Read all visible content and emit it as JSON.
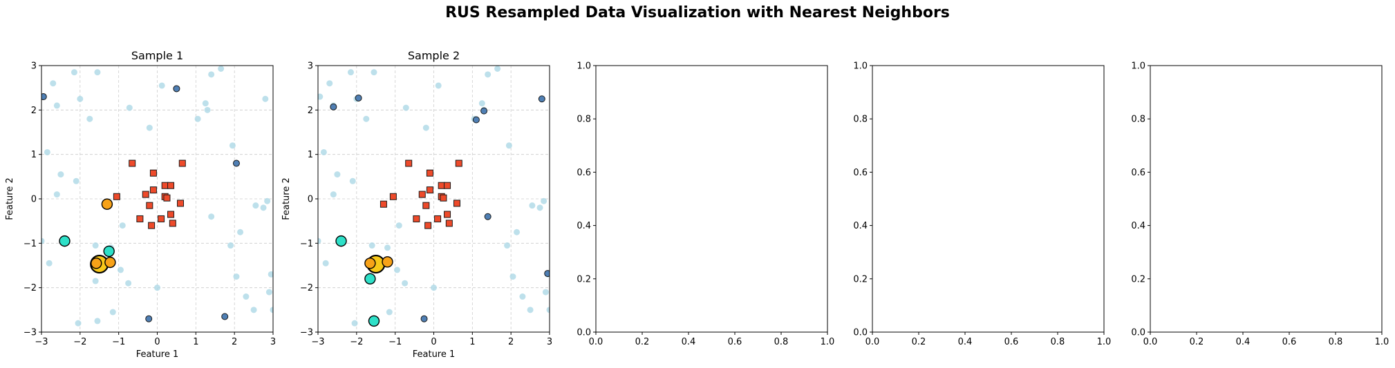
{
  "suptitle": "RUS Resampled Data Visualization with Nearest Neighbors",
  "colors": {
    "background_points": "#add8e6",
    "majority_points": "#4f7fb4",
    "minority_squares": "#ee4a2a",
    "neighbor_teal": "#2ee0c8",
    "neighbor_orange": "#f7a218",
    "query_point": "#f8c819",
    "grid": "#cccccc"
  },
  "chart_data": [
    {
      "type": "scatter",
      "title": "Sample 1",
      "xlabel": "Feature 1",
      "ylabel": "Feature 2",
      "xlim": [
        -3,
        3
      ],
      "ylim": [
        -3,
        3
      ],
      "xticks": [
        "−3",
        "−2",
        "−1",
        "0",
        "1",
        "2",
        "3"
      ],
      "yticks": [
        "−3",
        "−2",
        "−1",
        "0",
        "1",
        "2",
        "3"
      ],
      "grid": true,
      "legend": "none",
      "background": [
        [
          -2.95,
          2.3
        ],
        [
          -2.7,
          2.6
        ],
        [
          -2.15,
          2.85
        ],
        [
          -1.55,
          2.85
        ],
        [
          -2.6,
          2.1
        ],
        [
          -2.0,
          2.25
        ],
        [
          -1.75,
          1.8
        ],
        [
          -0.72,
          2.05
        ],
        [
          0.12,
          2.55
        ],
        [
          1.25,
          2.15
        ],
        [
          1.4,
          2.8
        ],
        [
          1.65,
          2.93
        ],
        [
          1.3,
          2.0
        ],
        [
          1.05,
          1.8
        ],
        [
          1.95,
          1.2
        ],
        [
          2.8,
          2.25
        ],
        [
          -0.2,
          1.6
        ],
        [
          -2.85,
          1.05
        ],
        [
          -2.5,
          0.55
        ],
        [
          -2.1,
          0.4
        ],
        [
          -2.6,
          0.1
        ],
        [
          2.55,
          -0.15
        ],
        [
          2.75,
          -0.2
        ],
        [
          2.85,
          -0.05
        ],
        [
          1.4,
          -0.4
        ],
        [
          -0.9,
          -0.6
        ],
        [
          1.9,
          -1.05
        ],
        [
          2.15,
          -0.75
        ],
        [
          -1.6,
          -1.05
        ],
        [
          -1.2,
          -1.1
        ],
        [
          -2.8,
          -1.45
        ],
        [
          -3.0,
          -0.95
        ],
        [
          -0.95,
          -1.6
        ],
        [
          -0.75,
          -1.9
        ],
        [
          -1.6,
          -1.85
        ],
        [
          0.0,
          -2.0
        ],
        [
          2.05,
          -1.75
        ],
        [
          2.95,
          -1.7
        ],
        [
          2.3,
          -2.2
        ],
        [
          2.5,
          -2.5
        ],
        [
          2.9,
          -2.1
        ],
        [
          3.0,
          -2.5
        ],
        [
          -1.55,
          -2.75
        ],
        [
          -1.15,
          -2.55
        ],
        [
          -2.05,
          -2.8
        ]
      ],
      "majority": [
        [
          -2.95,
          2.3
        ],
        [
          0.5,
          2.48
        ],
        [
          2.05,
          0.8
        ],
        [
          -0.22,
          -2.7
        ],
        [
          1.75,
          -2.65
        ]
      ],
      "minority": [
        [
          -0.65,
          0.8
        ],
        [
          0.65,
          0.8
        ],
        [
          -0.1,
          0.58
        ],
        [
          -1.05,
          0.05
        ],
        [
          -0.3,
          0.1
        ],
        [
          -0.1,
          0.2
        ],
        [
          0.2,
          0.3
        ],
        [
          0.35,
          0.3
        ],
        [
          0.2,
          0.05
        ],
        [
          0.25,
          0.02
        ],
        [
          0.6,
          -0.1
        ],
        [
          -0.2,
          -0.15
        ],
        [
          0.35,
          -0.35
        ],
        [
          -0.45,
          -0.45
        ],
        [
          0.1,
          -0.45
        ],
        [
          -0.15,
          -0.6
        ],
        [
          0.4,
          -0.55
        ]
      ],
      "neighbors_teal": [
        [
          -2.4,
          -0.95
        ],
        [
          -1.25,
          -1.18
        ]
      ],
      "neighbors_orange": [
        [
          -1.3,
          -0.12
        ],
        [
          -1.58,
          -1.45
        ],
        [
          -1.22,
          -1.43
        ]
      ],
      "query": [
        [
          -1.5,
          -1.47
        ]
      ]
    },
    {
      "type": "scatter",
      "title": "Sample 2",
      "xlabel": "Feature 1",
      "ylabel": "Feature 2",
      "xlim": [
        -3,
        3
      ],
      "ylim": [
        -3,
        3
      ],
      "xticks": [
        "−3",
        "−2",
        "−1",
        "0",
        "1",
        "2",
        "3"
      ],
      "yticks": [
        "−3",
        "−2",
        "−1",
        "0",
        "1",
        "2",
        "3"
      ],
      "grid": true,
      "legend": "none",
      "background": [
        [
          -2.95,
          2.3
        ],
        [
          -2.7,
          2.6
        ],
        [
          -2.15,
          2.85
        ],
        [
          -1.55,
          2.85
        ],
        [
          -2.6,
          2.1
        ],
        [
          -2.0,
          2.25
        ],
        [
          -1.75,
          1.8
        ],
        [
          -0.72,
          2.05
        ],
        [
          0.12,
          2.55
        ],
        [
          1.25,
          2.15
        ],
        [
          1.4,
          2.8
        ],
        [
          1.65,
          2.93
        ],
        [
          1.3,
          2.0
        ],
        [
          1.05,
          1.8
        ],
        [
          1.95,
          1.2
        ],
        [
          2.8,
          2.25
        ],
        [
          -0.2,
          1.6
        ],
        [
          -2.85,
          1.05
        ],
        [
          -2.5,
          0.55
        ],
        [
          -2.1,
          0.4
        ],
        [
          -2.6,
          0.1
        ],
        [
          2.55,
          -0.15
        ],
        [
          2.75,
          -0.2
        ],
        [
          2.85,
          -0.05
        ],
        [
          1.4,
          -0.4
        ],
        [
          -0.9,
          -0.6
        ],
        [
          1.9,
          -1.05
        ],
        [
          2.15,
          -0.75
        ],
        [
          -1.6,
          -1.05
        ],
        [
          -1.2,
          -1.1
        ],
        [
          -2.8,
          -1.45
        ],
        [
          -3.0,
          -0.95
        ],
        [
          -0.95,
          -1.6
        ],
        [
          -0.75,
          -1.9
        ],
        [
          -1.6,
          -1.85
        ],
        [
          0.0,
          -2.0
        ],
        [
          2.05,
          -1.75
        ],
        [
          2.95,
          -1.7
        ],
        [
          2.3,
          -2.2
        ],
        [
          2.5,
          -2.5
        ],
        [
          2.9,
          -2.1
        ],
        [
          3.0,
          -2.5
        ],
        [
          -1.55,
          -2.75
        ],
        [
          -1.15,
          -2.55
        ],
        [
          -2.05,
          -2.8
        ]
      ],
      "majority": [
        [
          -2.6,
          2.07
        ],
        [
          -1.95,
          2.27
        ],
        [
          1.1,
          1.78
        ],
        [
          1.3,
          1.98
        ],
        [
          2.8,
          2.25
        ],
        [
          1.4,
          -0.4
        ],
        [
          -0.25,
          -2.7
        ],
        [
          2.95,
          -1.68
        ]
      ],
      "minority": [
        [
          -0.65,
          0.8
        ],
        [
          0.65,
          0.8
        ],
        [
          -0.1,
          0.58
        ],
        [
          -1.05,
          0.05
        ],
        [
          -0.3,
          0.1
        ],
        [
          -0.1,
          0.2
        ],
        [
          0.2,
          0.3
        ],
        [
          0.35,
          0.3
        ],
        [
          0.2,
          0.05
        ],
        [
          0.25,
          0.02
        ],
        [
          0.6,
          -0.1
        ],
        [
          -1.3,
          -0.12
        ],
        [
          -0.2,
          -0.15
        ],
        [
          0.35,
          -0.35
        ],
        [
          -0.45,
          -0.45
        ],
        [
          0.1,
          -0.45
        ],
        [
          -0.15,
          -0.6
        ],
        [
          0.4,
          -0.55
        ]
      ],
      "neighbors_teal": [
        [
          -2.4,
          -0.95
        ],
        [
          -1.65,
          -1.8
        ],
        [
          -1.55,
          -2.75
        ]
      ],
      "neighbors_orange": [
        [
          -1.65,
          -1.45
        ],
        [
          -1.2,
          -1.42
        ]
      ],
      "query": [
        [
          -1.5,
          -1.47
        ]
      ]
    },
    {
      "type": "scatter",
      "title": "",
      "xlim": [
        0,
        1
      ],
      "ylim": [
        0,
        1
      ],
      "xticks": [
        "0.0",
        "0.2",
        "0.4",
        "0.6",
        "0.8",
        "1.0"
      ],
      "yticks": [
        "0.0",
        "0.2",
        "0.4",
        "0.6",
        "0.8",
        "1.0"
      ],
      "grid": false,
      "legend": "none"
    },
    {
      "type": "scatter",
      "title": "",
      "xlim": [
        0,
        1
      ],
      "ylim": [
        0,
        1
      ],
      "xticks": [
        "0.0",
        "0.2",
        "0.4",
        "0.6",
        "0.8",
        "1.0"
      ],
      "yticks": [
        "0.0",
        "0.2",
        "0.4",
        "0.6",
        "0.8",
        "1.0"
      ],
      "grid": false,
      "legend": "none"
    },
    {
      "type": "scatter",
      "title": "",
      "xlim": [
        0,
        1
      ],
      "ylim": [
        0,
        1
      ],
      "xticks": [
        "0.0",
        "0.2",
        "0.4",
        "0.6",
        "0.8",
        "1.0"
      ],
      "yticks": [
        "0.0",
        "0.2",
        "0.4",
        "0.6",
        "0.8",
        "1.0"
      ],
      "grid": false,
      "legend": "none"
    }
  ]
}
